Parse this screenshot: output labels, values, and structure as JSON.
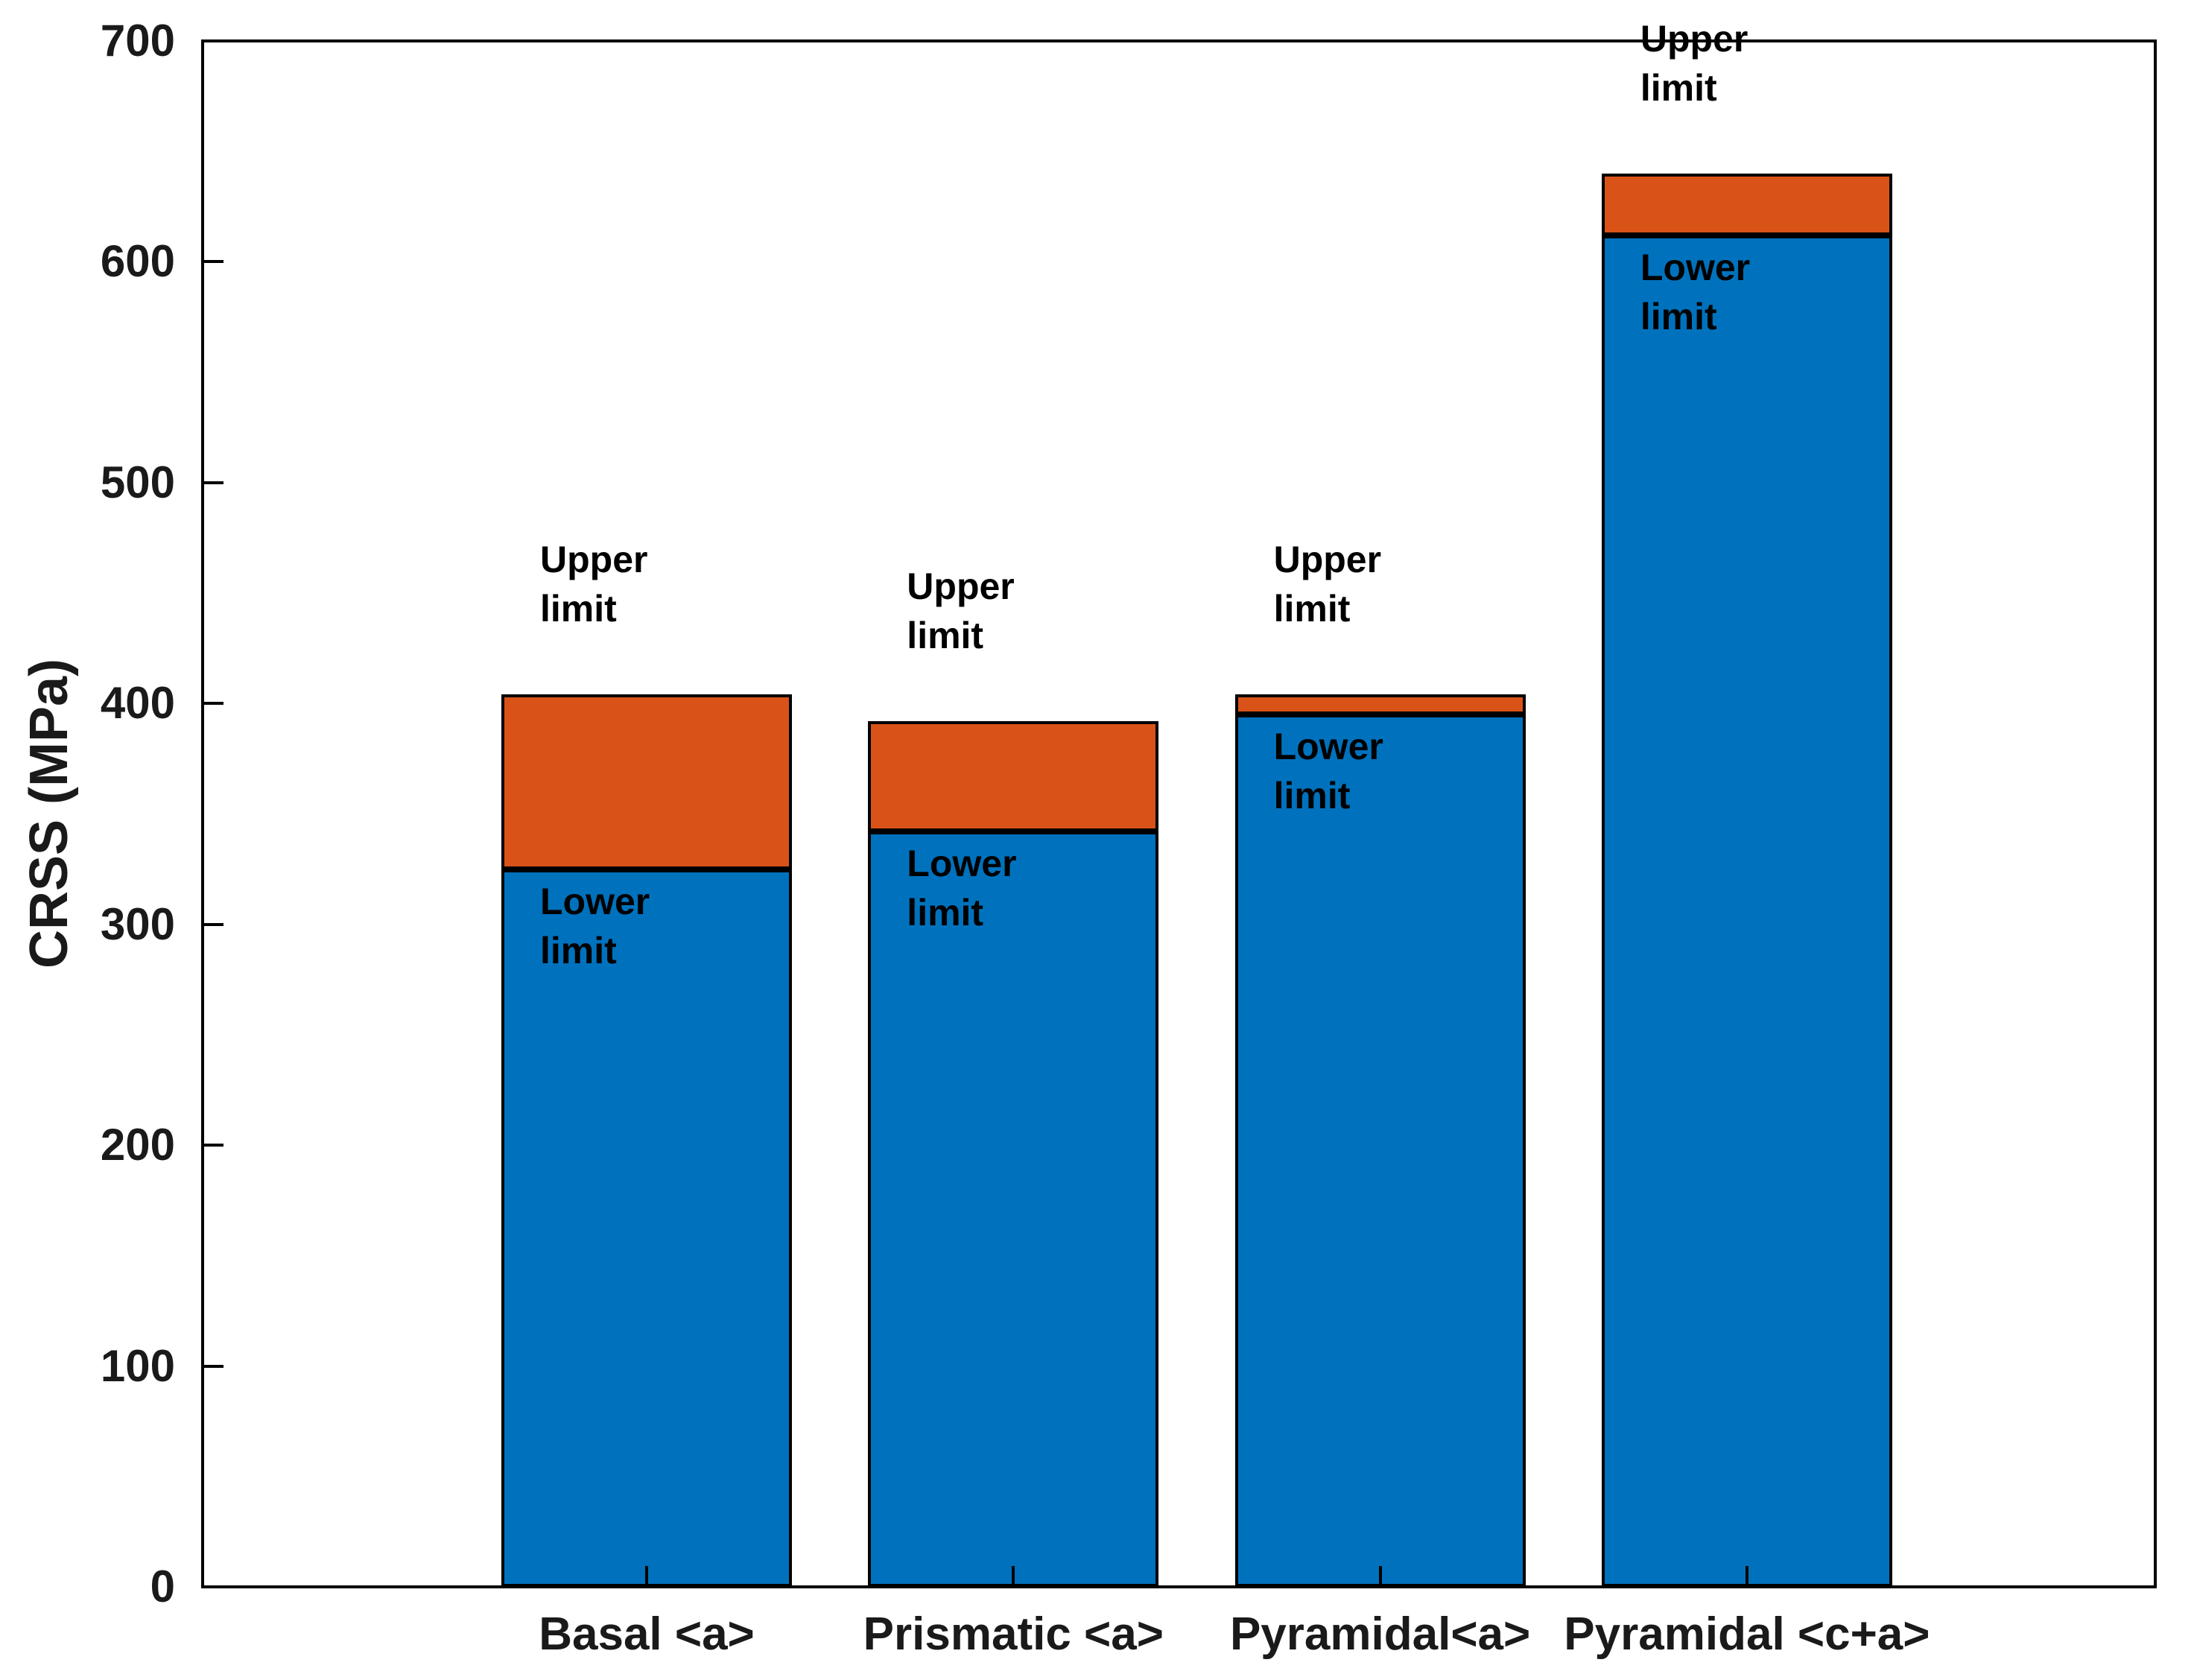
{
  "chart_data": {
    "type": "bar",
    "stacked": true,
    "title": "",
    "xlabel": "",
    "ylabel": "CRSS (MPa)",
    "ylim": [
      0,
      700
    ],
    "ytick_interval": 100,
    "ytick_labels": [
      "0",
      "100",
      "200",
      "300",
      "400",
      "500",
      "600",
      "700"
    ],
    "grid": false,
    "box": true,
    "legend_position": "none",
    "categories": [
      "Basal <a>",
      "Prismatic <a>",
      "Pyramidal<a>",
      "Pyramidal <c+a>"
    ],
    "series": [
      {
        "name": "Lower limit",
        "role": "lower-limit",
        "color": "#0072BD",
        "values": [
          325,
          342,
          395,
          612
        ]
      },
      {
        "name": "Upper limit",
        "role": "upper-limit",
        "color": "#D95319",
        "values": [
          404,
          392,
          404,
          640
        ]
      }
    ],
    "bars": [
      {
        "category": "Basal <a>",
        "lower_limit_mpa": 325,
        "upper_limit_mpa": 404
      },
      {
        "category": "Prismatic <a>",
        "lower_limit_mpa": 342,
        "upper_limit_mpa": 392
      },
      {
        "category": "Pyramidal<a>",
        "lower_limit_mpa": 395,
        "upper_limit_mpa": 404
      },
      {
        "category": "Pyramidal <c+a>",
        "lower_limit_mpa": 612,
        "upper_limit_mpa": 640
      }
    ],
    "annotations": {
      "upper_label": "Upper limit",
      "lower_label": "Lower limit"
    },
    "colors": {
      "lower_bar": "#0072BD",
      "upper_bar": "#D95319",
      "axis": "#000000",
      "tick_text": "#1a1a1a",
      "annotation_text": "#000000",
      "background": "#ffffff"
    }
  }
}
